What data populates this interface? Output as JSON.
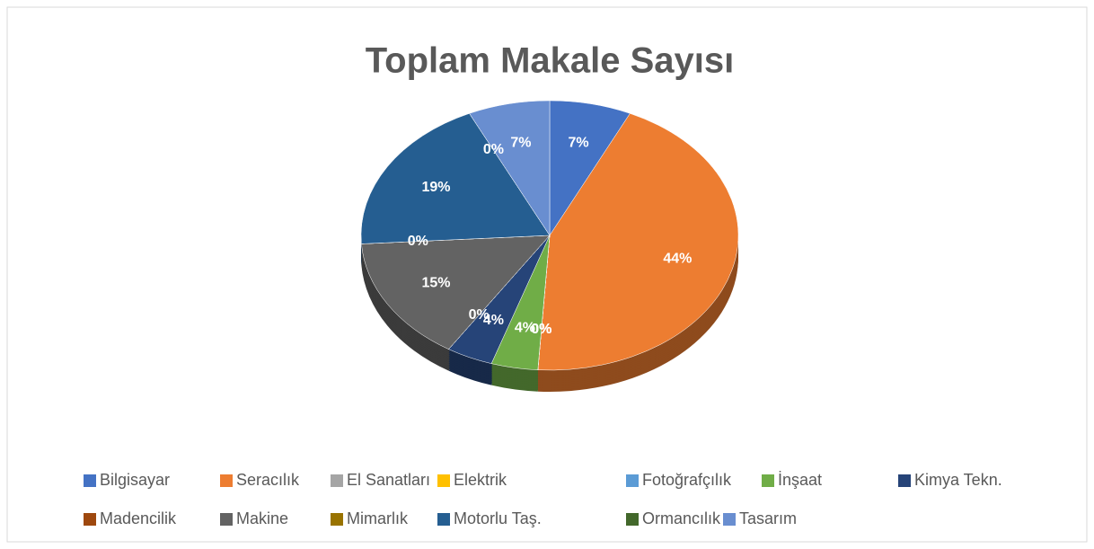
{
  "chart_data": {
    "type": "pie",
    "title": "Toplam Makale Sayısı",
    "categories": [
      "Bilgisayar",
      "Seracılık",
      "El Sanatları",
      "Elektrik",
      "Fotoğrafçılık",
      "İnşaat",
      "Kimya Tekn.",
      "Madencilik",
      "Makine",
      "Mimarlık",
      "Motorlu Taş.",
      "Ormancılık",
      "Tasarım"
    ],
    "values": [
      7,
      44,
      0,
      0,
      0,
      4,
      4,
      0,
      15,
      0,
      19,
      0,
      7
    ],
    "value_labels": [
      "7%",
      "44%",
      "0%",
      "0%",
      "0%",
      "4%",
      "4%",
      "0%",
      "15%",
      "0%",
      "19%",
      "0%",
      "7%"
    ],
    "colors": [
      "#4472c4",
      "#ed7d31",
      "#a5a5a5",
      "#ffc000",
      "#5b9bd5",
      "#70ad47",
      "#264478",
      "#9e480e",
      "#636363",
      "#997300",
      "#255e91",
      "#43682b",
      "#698ed0"
    ],
    "legend": "bottom"
  }
}
